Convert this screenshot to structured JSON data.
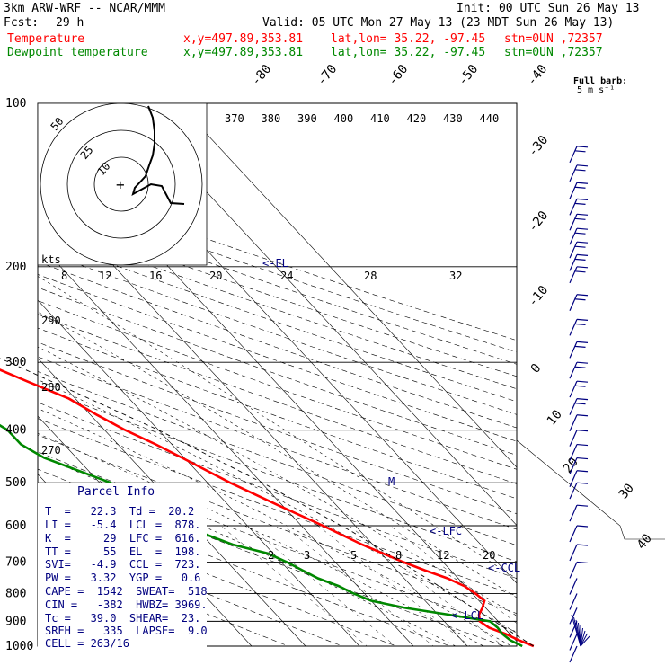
{
  "header": {
    "model": "3km ARW-WRF -- NCAR/MMM",
    "init": "Init: 00 UTC Sun 26 May 13",
    "fcst_label": "Fcst:",
    "fcst_value": "29 h",
    "valid": "Valid: 05 UTC Mon 27 May 13 (23 MDT Sun 26 May 13)"
  },
  "legend": [
    {
      "name": "Temperature",
      "coords": "x,y=497.89,353.81",
      "latlon": "lat,lon= 35.22, -97.45",
      "stn": "stn=0UN ,72357",
      "color": "#ff0000"
    },
    {
      "name": "Dewpoint temperature",
      "coords": "x,y=497.89,353.81",
      "latlon": "lat,lon= 35.22, -97.45",
      "stn": "stn=0UN ,72357",
      "color": "#008800"
    }
  ],
  "barb_key": {
    "line1": "Full barb:",
    "line2": "5 m s⁻¹"
  },
  "parcel": {
    "title": "Parcel Info",
    "rows": [
      "T  =   22.3  Td =  20.2",
      "LI =   -5.4  LCL =  878.",
      "K  =     29  LFC =  616.",
      "TT =     55  EL  =  198.",
      "SVI=   -4.9  CCL =  723.",
      "PW =   3.32  YGP =   0.6",
      "CAPE =  1542  SWEAT=  518",
      "CIN =   -382  HWBZ= 3969.",
      "Tc =   39.0  SHEAR=  23.",
      "SREH =   335  LAPSE=  9.0",
      "CELL = 263/16"
    ]
  },
  "chart_data": {
    "type": "line",
    "diagram": "skew-T log-p",
    "y_axis": {
      "label": "pressure (hPa)",
      "ticks": [
        100,
        200,
        300,
        400,
        500,
        600,
        700,
        800,
        900,
        1000
      ],
      "scale": "log"
    },
    "isotherm_labels": [
      "-80",
      "-70",
      "-60",
      "-50",
      "-40",
      "-30",
      "-20",
      "-10",
      "0",
      "10",
      "20",
      "30",
      "40"
    ],
    "dry_adiabat_labels": [
      "370",
      "380",
      "390",
      "400",
      "410",
      "420",
      "430",
      "440",
      "290",
      "280",
      "270"
    ],
    "mixing_ratio_labels": [
      "2",
      "3",
      "5",
      "8",
      "12",
      "20"
    ],
    "upper_mixing_labels": [
      "8",
      "12",
      "16",
      "20",
      "24",
      "28",
      "32"
    ],
    "series": [
      {
        "name": "Temperature",
        "color": "#ff0000",
        "points": [
          [
            1000,
            22.3
          ],
          [
            975,
            20.6
          ],
          [
            950,
            19.2
          ],
          [
            925,
            17.2
          ],
          [
            900,
            16.6
          ],
          [
            875,
            17.6
          ],
          [
            850,
            19.4
          ],
          [
            825,
            21.0
          ],
          [
            800,
            20.6
          ],
          [
            775,
            19.8
          ],
          [
            750,
            18.0
          ],
          [
            725,
            15.2
          ],
          [
            700,
            12.6
          ],
          [
            650,
            8.0
          ],
          [
            600,
            4.0
          ],
          [
            550,
            -0.8
          ],
          [
            500,
            -5.8
          ],
          [
            450,
            -10.4
          ],
          [
            425,
            -13.0
          ],
          [
            400,
            -16.2
          ],
          [
            375,
            -18.8
          ],
          [
            350,
            -21.2
          ],
          [
            325,
            -26.0
          ],
          [
            300,
            -31.0
          ],
          [
            275,
            -36.0
          ],
          [
            250,
            -42.0
          ],
          [
            225,
            -48.0
          ],
          [
            210,
            -53.0
          ],
          [
            200,
            -56.0
          ],
          [
            190,
            -59.0
          ],
          [
            175,
            -60.0
          ],
          [
            150,
            -62.0
          ],
          [
            125,
            -64.0
          ],
          [
            115,
            -65.0
          ],
          [
            100,
            -65.0
          ]
        ]
      },
      {
        "name": "Dewpoint temperature",
        "color": "#008800",
        "points": [
          [
            1000,
            20.2
          ],
          [
            975,
            19.0
          ],
          [
            950,
            18.6
          ],
          [
            925,
            18.8
          ],
          [
            900,
            18.5
          ],
          [
            875,
            12.0
          ],
          [
            850,
            5.0
          ],
          [
            825,
            0.0
          ],
          [
            800,
            -2.0
          ],
          [
            775,
            -3.5
          ],
          [
            750,
            -6.0
          ],
          [
            725,
            -7.5
          ],
          [
            700,
            -9.0
          ],
          [
            675,
            -11.0
          ],
          [
            650,
            -16.0
          ],
          [
            600,
            -22.0
          ],
          [
            550,
            -24.0
          ],
          [
            500,
            -28.0
          ],
          [
            450,
            -36.0
          ],
          [
            425,
            -38.0
          ],
          [
            400,
            -38.0
          ],
          [
            375,
            -40.0
          ],
          [
            350,
            -35.0
          ],
          [
            325,
            -40.0
          ],
          [
            300,
            -46.0
          ],
          [
            250,
            -58.0
          ],
          [
            200,
            -68.0
          ],
          [
            175,
            -73.0
          ],
          [
            150,
            -78.0
          ],
          [
            125,
            -78.0
          ],
          [
            115,
            -79.0
          ],
          [
            100,
            -80.0
          ]
        ]
      },
      {
        "name": "parcel",
        "points": [
          [
            1000,
            22.3
          ],
          [
            878,
            18.6
          ],
          [
            800,
            16.0
          ],
          [
            700,
            12.2
          ],
          [
            616,
            8.4
          ],
          [
            500,
            0.2
          ],
          [
            400,
            -10.0
          ],
          [
            300,
            -26.0
          ],
          [
            250,
            -38.0
          ],
          [
            198,
            -58.0
          ]
        ]
      }
    ],
    "annotations": [
      "<-EL",
      "<-LFC",
      "<-CCL",
      "<-LCL",
      "M"
    ],
    "hodograph": {
      "label": "kts",
      "ring_labels": [
        "10",
        "25",
        "50"
      ]
    },
    "wind_barbs": {
      "color": "#000080",
      "levels": [
        120,
        130,
        140,
        150,
        160,
        170,
        180,
        190,
        200,
        225,
        250,
        275,
        300,
        325,
        350,
        375,
        400,
        425,
        450,
        475,
        500,
        550,
        600,
        650,
        700,
        750,
        800,
        850,
        900,
        950,
        1000
      ]
    }
  }
}
